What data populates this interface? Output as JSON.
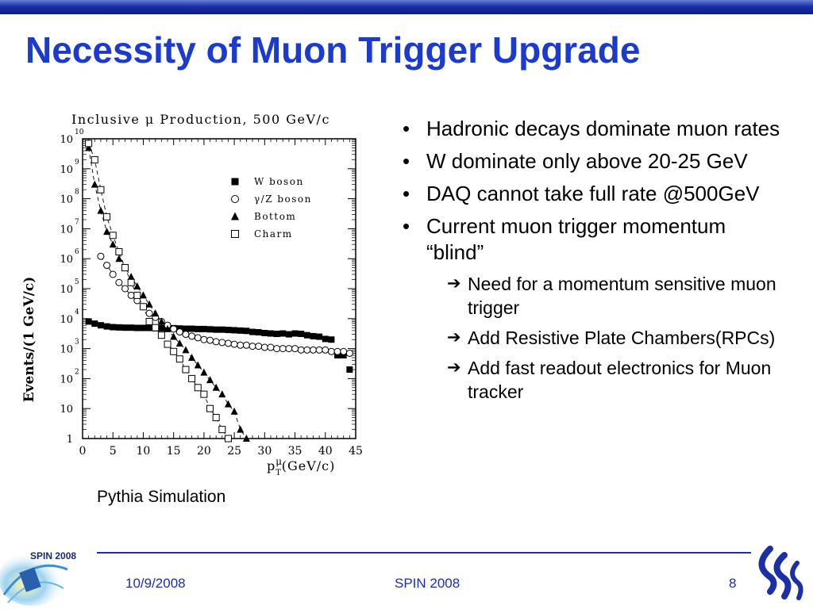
{
  "slide": {
    "title": "Necessity of Muon Trigger Upgrade",
    "caption": "Pythia Simulation"
  },
  "bullets": [
    {
      "text": "Hadronic decays dominate muon rates",
      "level": 1
    },
    {
      "text": "W dominate only above 20-25 GeV",
      "level": 1
    },
    {
      "text": "DAQ cannot take full rate @500GeV",
      "level": 1
    },
    {
      "text": "Current muon trigger momentum “blind”",
      "level": 1
    },
    {
      "text": "Need for a momentum sensitive muon trigger",
      "level": 2
    },
    {
      "text": "Add Resistive Plate Chambers(RPCs)",
      "level": 2
    },
    {
      "text": "Add fast readout electronics for Muon tracker",
      "level": 2
    }
  ],
  "footer": {
    "date": "10/9/2008",
    "center": "SPIN 2008",
    "page": "8",
    "logo_text": "SPIN 2008"
  },
  "colors": {
    "title": "#1a3ad0",
    "footer": "#1c2fa8",
    "bar": "#0a1b8a"
  },
  "icons": {
    "bullet": "bullet-dot",
    "sub_bullet": "right-arrow-icon",
    "logo_left": "spin-2008-logo",
    "logo_right": "georgia-tech-logo"
  },
  "chart_data": {
    "type": "scatter",
    "title": "Inclusive μ Production, 500 GeV/c",
    "ylabel": "Events/(1 GeV/c)",
    "xlabel": "pμT(GeV/c)",
    "xlabel_parts": {
      "p": "p",
      "sup": "μ",
      "sub": "T",
      "rest": "(GeV/c)"
    },
    "y_scale": "log",
    "xlim": [
      0,
      45
    ],
    "ylim": [
      1,
      10000000000
    ],
    "x_ticks": [
      0,
      5,
      10,
      15,
      20,
      25,
      30,
      35,
      40,
      45
    ],
    "y_ticks": [
      {
        "value": 1,
        "base": "1",
        "exp": ""
      },
      {
        "value": 10,
        "base": "10",
        "exp": ""
      },
      {
        "value": 100,
        "base": "10",
        "exp": "2"
      },
      {
        "value": 1000,
        "base": "10",
        "exp": "3"
      },
      {
        "value": 10000,
        "base": "10",
        "exp": "4"
      },
      {
        "value": 100000,
        "base": "10",
        "exp": "5"
      },
      {
        "value": 1000000,
        "base": "10",
        "exp": "6"
      },
      {
        "value": 10000000,
        "base": "10",
        "exp": "7"
      },
      {
        "value": 100000000,
        "base": "10",
        "exp": "8"
      },
      {
        "value": 1000000000,
        "base": "10",
        "exp": "9"
      },
      {
        "value": 10000000000,
        "base": "10",
        "exp": "10"
      }
    ],
    "legend_position": "top-right",
    "series": [
      {
        "name": "W boson",
        "marker": "filled-square",
        "x": [
          1,
          2,
          3,
          4,
          5,
          6,
          7,
          8,
          9,
          10,
          11,
          12,
          13,
          14,
          15,
          16,
          17,
          18,
          19,
          20,
          21,
          22,
          23,
          24,
          25,
          26,
          27,
          28,
          29,
          30,
          31,
          32,
          33,
          34,
          35,
          36,
          37,
          38,
          39,
          40,
          41,
          42,
          43,
          44
        ],
        "y": [
          8000,
          6800,
          6000,
          5500,
          5200,
          5100,
          5000,
          5000,
          4900,
          4900,
          4900,
          4800,
          4800,
          4700,
          4800,
          4700,
          4600,
          4600,
          4500,
          4500,
          4400,
          4300,
          4300,
          4200,
          4100,
          4000,
          3900,
          3600,
          3500,
          3300,
          3200,
          3100,
          3200,
          3000,
          3200,
          3100,
          2800,
          2600,
          2500,
          2100,
          2000,
          600,
          600,
          200
        ]
      },
      {
        "name": "γ/Z boson",
        "marker": "open-circle",
        "x": [
          3,
          4,
          5,
          6,
          7,
          8,
          9,
          10,
          11,
          12,
          13,
          14,
          15,
          16,
          17,
          18,
          19,
          20,
          21,
          22,
          23,
          24,
          25,
          26,
          27,
          28,
          29,
          30,
          31,
          32,
          33,
          34,
          35,
          36,
          37,
          38,
          39,
          40,
          41,
          42,
          43,
          44
        ],
        "y": [
          1200000,
          600000,
          300000,
          160000,
          100000,
          60000,
          40000,
          25000,
          15000,
          11000,
          8000,
          6000,
          4500,
          3600,
          3000,
          2600,
          2300,
          2000,
          1900,
          1700,
          1600,
          1500,
          1400,
          1300,
          1300,
          1200,
          1200,
          1100,
          1100,
          1000,
          1000,
          1000,
          1000,
          900,
          900,
          900,
          900,
          900,
          800,
          800,
          800,
          700
        ]
      },
      {
        "name": "Bottom",
        "marker": "filled-triangle",
        "x": [
          1,
          2,
          3,
          4,
          5,
          6,
          7,
          8,
          9,
          10,
          11,
          12,
          13,
          14,
          15,
          16,
          17,
          18,
          19,
          20,
          21,
          22,
          23,
          24,
          25,
          26,
          27
        ],
        "y": [
          5000000000,
          300000000,
          40000000,
          8000000,
          3000000,
          1000000,
          500000,
          250000,
          120000,
          60000,
          30000,
          15000,
          8000,
          4500,
          2500,
          1500,
          900,
          500,
          280,
          160,
          90,
          50,
          30,
          14,
          8,
          2,
          1
        ]
      },
      {
        "name": "Charm",
        "marker": "open-square",
        "x": [
          1,
          2,
          3,
          4,
          5,
          6,
          7,
          8,
          9,
          10,
          11,
          12,
          13,
          14,
          15,
          16,
          17,
          18,
          19,
          20,
          21,
          22,
          23,
          24
        ],
        "y": [
          7000000000,
          2000000000,
          200000000,
          25000000,
          6000000,
          1700000,
          500000,
          160000,
          60000,
          25000,
          8000,
          5000,
          2800,
          1400,
          800,
          450,
          200,
          100,
          50,
          30,
          10,
          5,
          2,
          1
        ]
      }
    ]
  }
}
